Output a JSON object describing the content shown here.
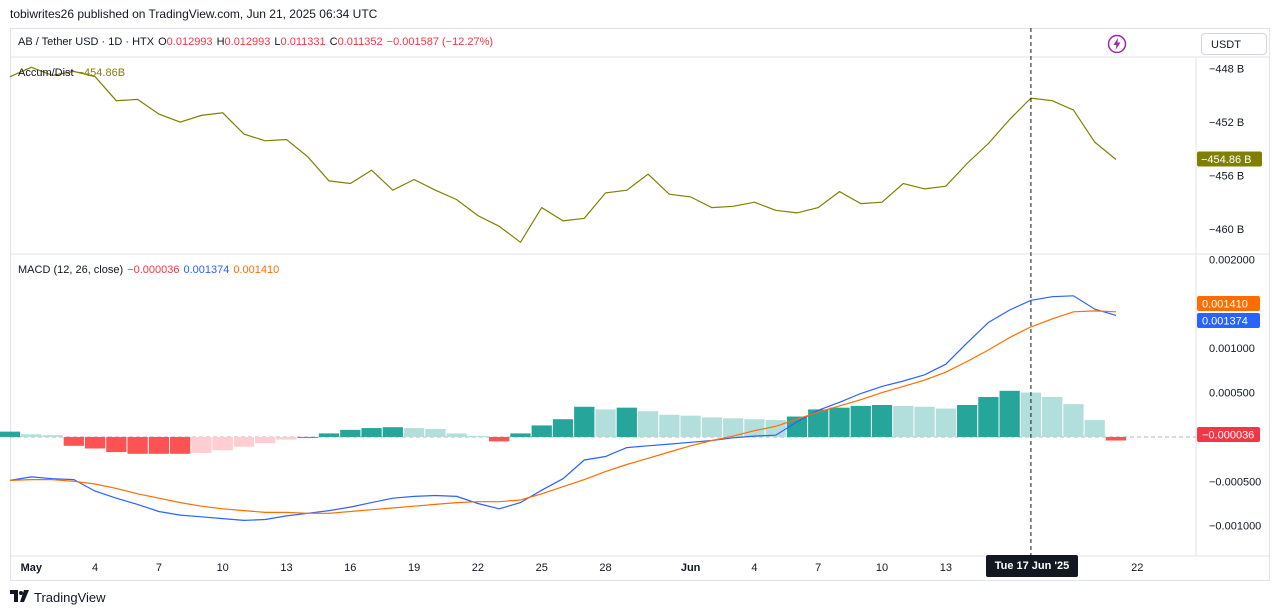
{
  "header": {
    "publisher": "tobiwrites26 published on TradingView.com, Jun 21, 2025 06:34 UTC"
  },
  "symbol_legend": {
    "symbol": "AB / Tether USD · 1D · HTX",
    "open_label": "O",
    "open": "0.012993",
    "high_label": "H",
    "high": "0.012993",
    "low_label": "L",
    "low": "0.011331",
    "close_label": "C",
    "close": "0.011352",
    "change": "−0.001587 (−12.27%)"
  },
  "currency_button": "USDT",
  "icons": {
    "bolt": "lightning-bolt-icon",
    "logo": "tradingview-logo-icon"
  },
  "colors": {
    "accum": "#808000",
    "macd": "#2962ff",
    "signal": "#ff6d00",
    "hist_up_strong": "#26a69a",
    "hist_up_weak": "#b2dfdb",
    "hist_down_strong": "#ff5252",
    "hist_down_weak": "#ffcdd2"
  },
  "accum_legend": {
    "name": "Accum/Dist",
    "value": "−454.86B"
  },
  "macd_legend": {
    "name": "MACD (12, 26, close)",
    "hist": "−0.000036",
    "macd": "0.001374",
    "signal": "0.001410"
  },
  "crosshair_date": "Tue 17 Jun '25",
  "footer": {
    "brand": "TradingView"
  },
  "chart_data": [
    {
      "type": "line",
      "name": "Accum/Dist",
      "x_start": "2025-04-30",
      "x_end": "2025-06-21",
      "y_unit": "B",
      "ylim": [
        -461.8,
        -447.2
      ],
      "y_ticks": [
        -448,
        -452,
        -456,
        -460
      ],
      "y_tick_labels": [
        "−448 B",
        "−452 B",
        "−456 B",
        "−460 B"
      ],
      "last_value_label": "−454.86 B",
      "series": [
        {
          "name": "Accum/Dist",
          "values": [
            -448.6,
            -447.9,
            -448.5,
            -448.2,
            -448.6,
            -450.4,
            -450.3,
            -451.4,
            -452.0,
            -451.5,
            -451.3,
            -452.9,
            -453.4,
            -453.3,
            -454.6,
            -456.4,
            -456.6,
            -455.6,
            -457.1,
            -456.3,
            -457.1,
            -457.8,
            -459.0,
            -459.8,
            -461.0,
            -458.4,
            -459.4,
            -459.2,
            -457.3,
            -457.1,
            -455.9,
            -457.4,
            -457.6,
            -458.4,
            -458.3,
            -458.0,
            -458.6,
            -458.8,
            -458.4,
            -457.2,
            -458.1,
            -458.0,
            -456.6,
            -457.0,
            -456.8,
            -455.1,
            -453.6,
            -451.8,
            -450.2,
            -450.4,
            -451.1,
            -453.5,
            -454.8
          ]
        }
      ]
    },
    {
      "type": "bar",
      "name": "MACD (12, 26, close)",
      "x_start": "2025-04-30",
      "x_end": "2025-06-21",
      "ylim": [
        -0.00133,
        0.00205
      ],
      "y_ticks": [
        0.002,
        0.001,
        0.0005,
        -0.0005,
        -0.001
      ],
      "y_tick_labels": [
        "0.002000",
        "0.001000",
        "0.000500",
        "−0.000500",
        "−0.001000"
      ],
      "zero_line_label": "−0.000036",
      "x_ticks": [
        "May",
        "4",
        "7",
        "10",
        "13",
        "16",
        "19",
        "22",
        "25",
        "28",
        "Jun",
        "4",
        "7",
        "10",
        "13",
        "22"
      ],
      "series": [
        {
          "name": "Histogram",
          "values": [
            6e-05,
            3e-05,
            2e-05,
            -0.0001,
            -0.00013,
            -0.00017,
            -0.00019,
            -0.00019,
            -0.00019,
            -0.00018,
            -0.00015,
            -0.00011,
            -7e-05,
            -3e-05,
            0.0,
            4e-05,
            8e-05,
            0.0001,
            0.00011,
            0.0001,
            9e-05,
            4e-05,
            1e-05,
            -5e-05,
            4e-05,
            0.00013,
            0.0002,
            0.00034,
            0.00031,
            0.00033,
            0.00029,
            0.00025,
            0.00024,
            0.00022,
            0.00021,
            0.0002,
            0.00019,
            0.00023,
            0.00031,
            0.00033,
            0.00035,
            0.00036,
            0.00035,
            0.00034,
            0.00032,
            0.00036,
            0.00045,
            0.00052,
            0.0005,
            0.00045,
            0.00037,
            0.00019,
            -4e-05
          ]
        },
        {
          "name": "MACD",
          "values": [
            -0.00049,
            -0.00045,
            -0.00047,
            -0.00048,
            -0.00061,
            -0.00069,
            -0.00076,
            -0.00084,
            -0.00088,
            -0.0009,
            -0.00092,
            -0.00094,
            -0.00093,
            -0.00089,
            -0.00086,
            -0.00083,
            -0.00079,
            -0.00074,
            -0.00069,
            -0.00067,
            -0.00066,
            -0.00067,
            -0.00075,
            -0.00081,
            -0.00074,
            -0.0006,
            -0.00047,
            -0.00026,
            -0.00022,
            -0.00012,
            -0.0001,
            -8e-05,
            -6e-05,
            -4e-05,
            -1e-05,
            1e-05,
            2e-05,
            0.00017,
            0.0003,
            0.00039,
            0.00049,
            0.00057,
            0.00063,
            0.0007,
            0.00082,
            0.00106,
            0.00129,
            0.00143,
            0.00154,
            0.00158,
            0.00159,
            0.00144,
            0.00137
          ]
        },
        {
          "name": "Signal",
          "values": [
            -0.00049,
            -0.00048,
            -0.00048,
            -0.0005,
            -0.00053,
            -0.00058,
            -0.00064,
            -0.00069,
            -0.00074,
            -0.00078,
            -0.00081,
            -0.00083,
            -0.00085,
            -0.00085,
            -0.00086,
            -0.00086,
            -0.00084,
            -0.00082,
            -0.0008,
            -0.00078,
            -0.00076,
            -0.00074,
            -0.00073,
            -0.00073,
            -0.00071,
            -0.00064,
            -0.00056,
            -0.00048,
            -0.00039,
            -0.00031,
            -0.00024,
            -0.00017,
            -0.0001,
            -4e-05,
            1e-05,
            7e-05,
            0.00012,
            0.0002,
            0.00028,
            0.00035,
            0.00042,
            0.0005,
            0.00057,
            0.00064,
            0.00073,
            0.00085,
            0.00098,
            0.00112,
            0.00124,
            0.00133,
            0.00141,
            0.00142,
            0.00141
          ]
        }
      ]
    }
  ]
}
